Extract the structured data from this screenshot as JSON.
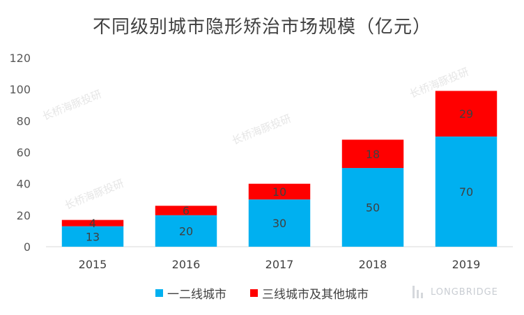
{
  "chart_data": {
    "type": "bar",
    "stacked": true,
    "title": "不同级别城市隐形矫治市场规模（亿元）",
    "categories": [
      "2015",
      "2016",
      "2017",
      "2018",
      "2019"
    ],
    "series": [
      {
        "name": "一二线城市",
        "values": [
          13,
          20,
          30,
          50,
          70
        ],
        "color": "#00B0F0"
      },
      {
        "name": "三线城市及其他城市",
        "values": [
          4,
          6,
          10,
          18,
          29
        ],
        "color": "#FF0000"
      }
    ],
    "ylim": [
      0,
      120
    ],
    "yticks": [
      "0",
      "20",
      "40",
      "60",
      "80",
      "100",
      "120"
    ],
    "grid": false,
    "legend_position": "bottom"
  },
  "watermark": "长桥海豚投研",
  "brand": "LONGBRIDGE"
}
